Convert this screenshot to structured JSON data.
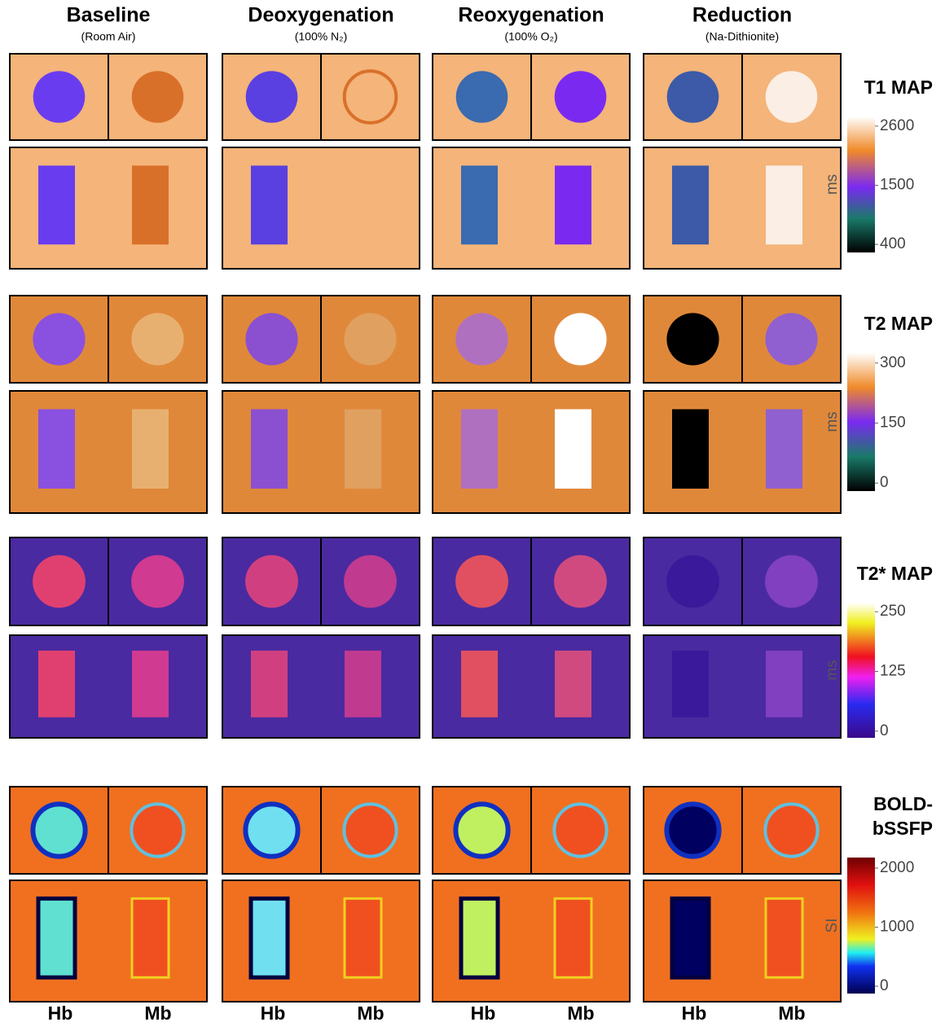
{
  "columns": [
    {
      "title": "Baseline",
      "subtitle": "(Room Air)"
    },
    {
      "title": "Deoxygenation",
      "subtitle": "(100% N₂)"
    },
    {
      "title": "Reoxygenation",
      "subtitle": "(100% O₂)"
    },
    {
      "title": "Reduction",
      "subtitle": "(Na-Dithionite)"
    }
  ],
  "maps": [
    {
      "title_lines": [
        "T1 MAP"
      ],
      "unit": "ms",
      "lim": [
        250,
        2780
      ],
      "ticks": [
        400,
        1500,
        2600
      ]
    },
    {
      "title_lines": [
        "T2 MAP"
      ],
      "unit": "ms",
      "lim": [
        -20,
        326
      ],
      "ticks": [
        0,
        150,
        300
      ]
    },
    {
      "title_lines": [
        "T2* MAP"
      ],
      "unit": "ms",
      "lim": [
        -14,
        269
      ],
      "ticks": [
        0,
        125,
        250
      ]
    },
    {
      "title_lines": [
        "BOLD-",
        "bSSFP"
      ],
      "unit": "SI",
      "lim": [
        -124,
        2179
      ],
      "ticks": [
        0,
        1000,
        2000
      ]
    }
  ],
  "bottom_labels": [
    "Hb",
    "Mb"
  ]
}
